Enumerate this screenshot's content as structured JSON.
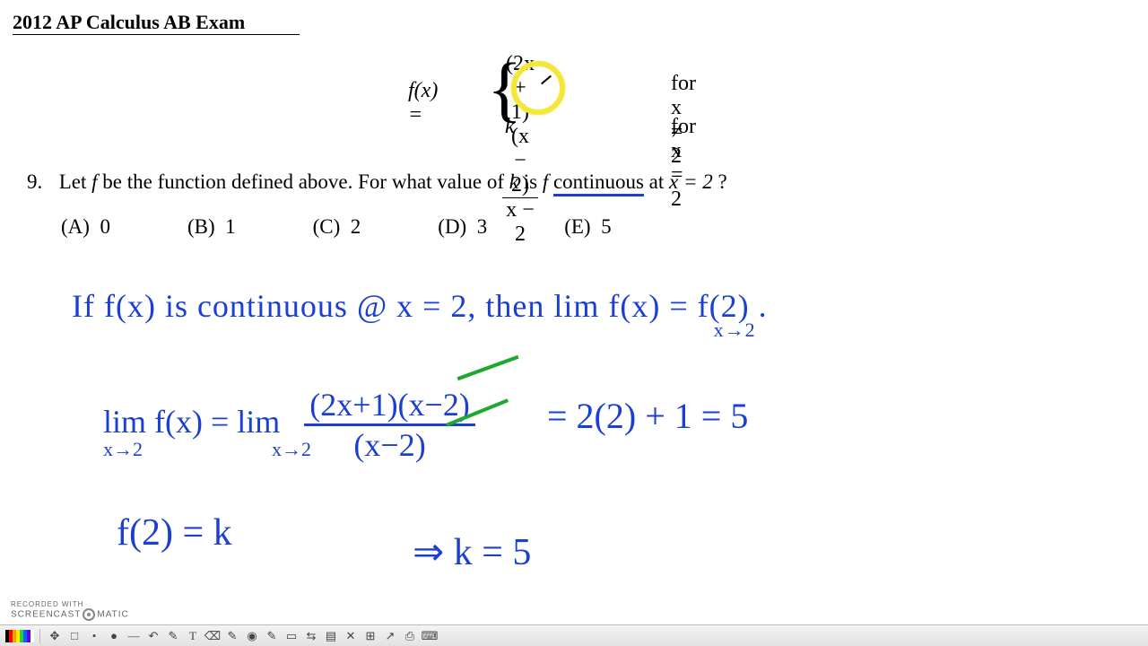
{
  "title": "2012 AP Calculus AB Exam",
  "function": {
    "lhs": "f(x) = ",
    "piece1_num": "(2x + 1)(x − 2)",
    "piece1_den": "x − 2",
    "piece1_cond": "for x ≠ 2",
    "piece2": "k",
    "piece2_cond": "for x = 2"
  },
  "question": {
    "number": "9.",
    "text_a": "Let ",
    "f": "f",
    "text_b": " be the function defined above. For what value of ",
    "k": "k",
    "text_c": " is ",
    "f2": "f",
    "cont": "continuous",
    "text_d": " at ",
    "loc": "x = 2",
    "qm": " ?"
  },
  "choices": {
    "A": {
      "label": "(A)",
      "value": "0"
    },
    "B": {
      "label": "(B)",
      "value": "1"
    },
    "C": {
      "label": "(C)",
      "value": "2"
    },
    "D": {
      "label": "(D)",
      "value": "3"
    },
    "E": {
      "label": "(E)",
      "value": "5"
    }
  },
  "handwriting": {
    "line1_a": "If  f(x)  is  continuous  @  x = 2,  then  ",
    "line1_lim": "lim f(x) = f(2) .",
    "line1_sub": "x→2",
    "line2_lhs": "lim f(x) = lim",
    "line2_sub1": "x→2",
    "line2_sub2": "x→2",
    "frac_num": "(2x+1)(x−2)",
    "frac_den": "(x−2)",
    "line2_rhs": "=  2(2) + 1  =  5",
    "line3": "f(2) = k",
    "line4": "⇒  k = 5"
  },
  "annotations": {
    "circle_color": "#f5e73a",
    "underline_color": "#1a3fd1",
    "crossout_color": "#1fa82e",
    "handwriting_color": "#1a3fd1"
  },
  "watermark": {
    "line1": "RECORDED WITH",
    "brand_a": "SCREENCAST",
    "brand_b": "MATIC"
  },
  "toolbar": {
    "swatches": [
      "#000000",
      "#ff0000",
      "#ff9900",
      "#ffee00",
      "#33cc33",
      "#0066ff",
      "#6600cc",
      "#ffffff"
    ],
    "tools": [
      "✥",
      "□",
      "•",
      "●",
      "—",
      "↶",
      "✎",
      "T",
      "⌫",
      "✎",
      "◉",
      "✎",
      "▭",
      "⇆",
      "▤",
      "✕",
      "⊞",
      "↗",
      "⎙",
      "⌨"
    ]
  }
}
